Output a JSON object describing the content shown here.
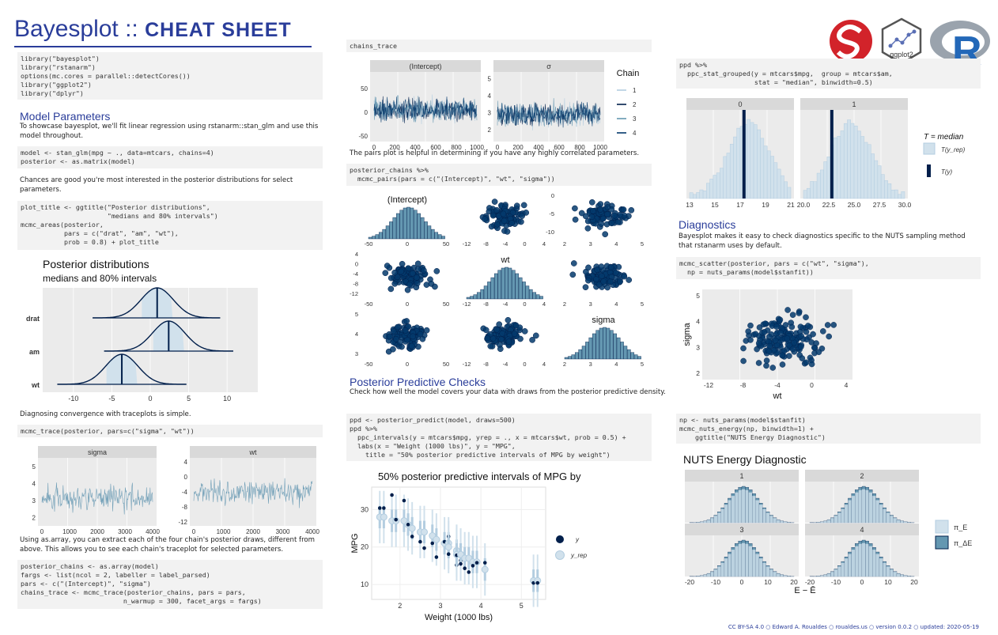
{
  "header": {
    "title_main": "Bayesplot ::",
    "title_bold": "CHEAT SHEET",
    "logos": [
      "stan-logo",
      "ggplot2-hex-logo",
      "r-logo"
    ],
    "ggplot2_label": "ggplot2"
  },
  "col1": {
    "setup_code": [
      "library(\"bayesplot\")",
      "library(\"rstanarm\")",
      "options(mc.cores = parallel::detectCores())",
      "library(\"ggplot2\")",
      "library(\"dplyr\")"
    ],
    "model_heading": "Model Parameters",
    "model_text_1": "To showcase bayesplot, we'll fit linear regression using rstanarm::stan_glm and use this model throughout.",
    "model_code": [
      "model <- stan_glm(mpg ~ ., data=mtcars, chains=4)",
      "posterior <- as.matrix(model)"
    ],
    "posterior_text": "Chances are good you're most interested in the posterior distributions for select parameters.",
    "areas_code": [
      "plot_title <- ggtitle(\"Posterior distributions\",",
      "                      \"medians and 80% intervals\")",
      "mcmc_areas(posterior,",
      "           pars = c(\"drat\", \"am\", \"wt\"),",
      "           prob = 0.8) + plot_title"
    ],
    "trace_text": "Diagnosing convergence with traceplots is simple.",
    "trace_code": "mcmc_trace(posterior, pars=c(\"sigma\", \"wt\"))",
    "array_text": "Using as.array, you can extract each of the four chain's posterior draws, different from above. This allows you to see each chain's traceplot for selected parameters.",
    "array_code": [
      "posterior_chains <- as.array(model)",
      "fargs <- list(ncol = 2, labeller = label_parsed)",
      "pars <- c(\"(Intercept)\", \"sigma\")",
      "chains_trace <- mcmc_trace(posterior_chains, pars = pars,",
      "                          n_warmup = 300, facet_args = fargs)"
    ]
  },
  "col2": {
    "chains_code": "chains_trace",
    "pairs_text": "The pairs plot is helpful in determining if you have any highly correlated parameters.",
    "pairs_code": [
      "posterior_chains %>%",
      "  mcmc_pairs(pars = c(\"(Intercept)\", \"wt\", \"sigma\"))"
    ],
    "ppc_heading": "Posterior Predictive Checks",
    "ppc_text": "Check how well the model covers your data with draws from the posterior predictive density.",
    "ppc_code": [
      "ppd <- posterior_predict(model, draws=500)",
      "ppd %>%",
      "  ppc_intervals(y = mtcars$mpg, yrep = ., x = mtcars$wt, prob = 0.5) +",
      "  labs(x = \"Weight (1000 lbs)\", y = \"MPG\",",
      "    title = \"50% posterior predictive intervals of MPG by weight\")"
    ]
  },
  "col3": {
    "stat_code": [
      "ppd %>%",
      "  ppc_stat_grouped(y = mtcars$mpg,  group = mtcars$am,",
      "                   stat = \"median\", binwidth=0.5)"
    ],
    "diag_heading": "Diagnostics",
    "diag_text": "Bayesplot makes it easy to check diagnostics specific to the NUTS sampling method that rstanarm uses by default.",
    "scatter_code": [
      "mcmc_scatter(posterior, pars = c(\"wt\", \"sigma\"),",
      "  np = nuts_params(model$stanfit))"
    ],
    "energy_code": [
      "np <- nuts_params(model$stanfit)",
      "mcmc_nuts_energy(np, binwidth=1) +",
      "    ggtitle(\"NUTS Energy Diagnostic\")"
    ]
  },
  "footer": "CC BY-SA 4.0 ○ Edward A. Roualdes ○ roualdes.us ○ version 0.0.2 ○ updated: 2020-05-19",
  "chart_data": [
    {
      "type": "area",
      "title": "Posterior distributions",
      "subtitle": "medians and 80% intervals",
      "categories": [
        "drat",
        "am",
        "wt"
      ],
      "medians": [
        0.9,
        2.4,
        -3.7
      ],
      "intervals_80": [
        [
          -1.1,
          2.9
        ],
        [
          0.4,
          4.4
        ],
        [
          -5.7,
          -1.7
        ]
      ],
      "xticks": [
        -10,
        -5,
        0,
        5,
        10
      ],
      "xlim": [
        -14,
        14
      ]
    },
    {
      "type": "line",
      "facets": [
        "sigma",
        "wt"
      ],
      "x_ticks": [
        0,
        1000,
        2000,
        3000,
        4000
      ],
      "sigma_yticks": [
        2,
        3,
        4,
        5
      ],
      "wt_yticks": [
        -12,
        -8,
        -4,
        0,
        4
      ]
    },
    {
      "type": "line",
      "facets": [
        "(Intercept)",
        "σ"
      ],
      "legend_title": "Chain",
      "legend": [
        "1",
        "2",
        "3",
        "4"
      ],
      "x_ticks": [
        0,
        200,
        400,
        600,
        800,
        1000
      ],
      "intercept_yticks": [
        -50,
        0,
        50
      ],
      "sigma_yticks": [
        2,
        3,
        4,
        5
      ]
    },
    {
      "type": "scatter",
      "diag_labels": [
        "(Intercept)",
        "wt",
        "sigma"
      ],
      "intercept_ticks": [
        -50,
        0,
        50
      ],
      "wt_ticks": [
        -12,
        -8,
        -4,
        0,
        4
      ],
      "sigma_ticks": [
        2,
        3,
        4,
        5
      ],
      "wt_yticks": [
        -12,
        -8,
        -4,
        0,
        4
      ],
      "wt_yticks_alt": [
        -10,
        -5,
        0
      ],
      "sigma_yticks": [
        3,
        4,
        5
      ]
    },
    {
      "type": "scatter",
      "title": "50% posterior predictive intervals of MPG by",
      "xlabel": "Weight (1000 lbs)",
      "ylabel": "MPG",
      "xticks": [
        2,
        3,
        4,
        5
      ],
      "yticks": [
        10,
        20,
        30
      ],
      "legend": [
        "y",
        "y_rep"
      ],
      "x": [
        1.5,
        1.6,
        1.8,
        1.9,
        2.1,
        2.2,
        2.3,
        2.5,
        2.6,
        2.8,
        2.9,
        3.1,
        3.2,
        3.2,
        3.4,
        3.4,
        3.4,
        3.5,
        3.5,
        3.6,
        3.7,
        3.8,
        3.9,
        4.1,
        5.3,
        5.4
      ],
      "y": [
        30.4,
        30.4,
        33.9,
        27.3,
        32.4,
        26.0,
        22.8,
        21.4,
        19.7,
        21.0,
        17.3,
        21.4,
        22.8,
        18.1,
        19.2,
        15.2,
        17.8,
        16.4,
        15.5,
        14.3,
        13.3,
        15.0,
        15.8,
        15.8,
        10.4,
        10.4
      ],
      "yrep": [
        28,
        28,
        27,
        27,
        27,
        26,
        25,
        24,
        24,
        23,
        22,
        21,
        21,
        20,
        19,
        19,
        18,
        18,
        18,
        17,
        17,
        16,
        16,
        14,
        11,
        11
      ]
    },
    {
      "type": "bar",
      "facets": [
        "0",
        "1"
      ],
      "stat_legend_title": "T = median",
      "legend": [
        "T(y_rep)",
        "T(y)"
      ],
      "xticks_0": [
        13,
        15,
        17,
        19,
        21
      ],
      "xticks_1": [
        20.0,
        22.5,
        25.0,
        27.5,
        30.0
      ],
      "T_y": [
        17.3,
        22.8
      ]
    },
    {
      "type": "scatter",
      "xlabel": "wt",
      "ylabel": "sigma",
      "xticks": [
        -12,
        -8,
        -4,
        0,
        4
      ],
      "yticks": [
        2,
        3,
        4,
        5
      ]
    },
    {
      "type": "bar",
      "title": "NUTS Energy Diagnostic",
      "facets": [
        "1",
        "2",
        "3",
        "4"
      ],
      "xticks": [
        -20,
        -10,
        0,
        10,
        20
      ],
      "xlabel": "E − Ē",
      "legend": [
        "π_E",
        "π_ΔE"
      ]
    }
  ]
}
